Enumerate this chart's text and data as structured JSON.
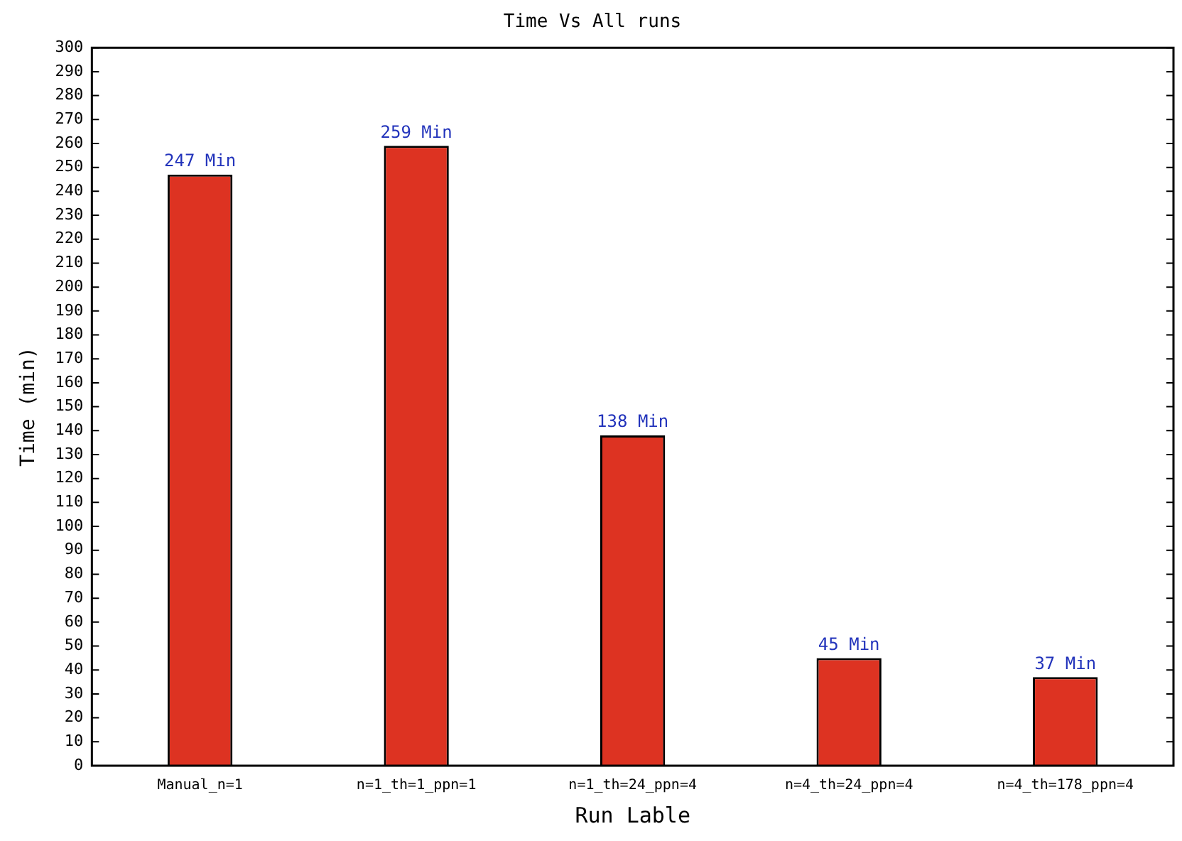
{
  "chart_data": {
    "type": "bar",
    "title": "Time Vs All runs",
    "xlabel": "Run Lable",
    "ylabel": "Time (min)",
    "categories": [
      "Manual_n=1",
      "n=1_th=1_ppn=1",
      "n=1_th=24_ppn=4",
      "n=4_th=24_ppn=4",
      "n=4_th=178_ppn=4"
    ],
    "values": [
      247,
      259,
      138,
      45,
      37
    ],
    "value_labels": [
      "247 Min",
      "259 Min",
      "138 Min",
      "45 Min",
      "37 Min"
    ],
    "color": "#dd3322",
    "ylim": [
      0,
      300
    ],
    "yticks": [
      0,
      10,
      20,
      30,
      40,
      50,
      60,
      70,
      80,
      90,
      100,
      110,
      120,
      130,
      140,
      150,
      160,
      170,
      180,
      190,
      200,
      210,
      220,
      230,
      240,
      250,
      260,
      270,
      280,
      290,
      300
    ],
    "grid": false,
    "legend": false
  }
}
